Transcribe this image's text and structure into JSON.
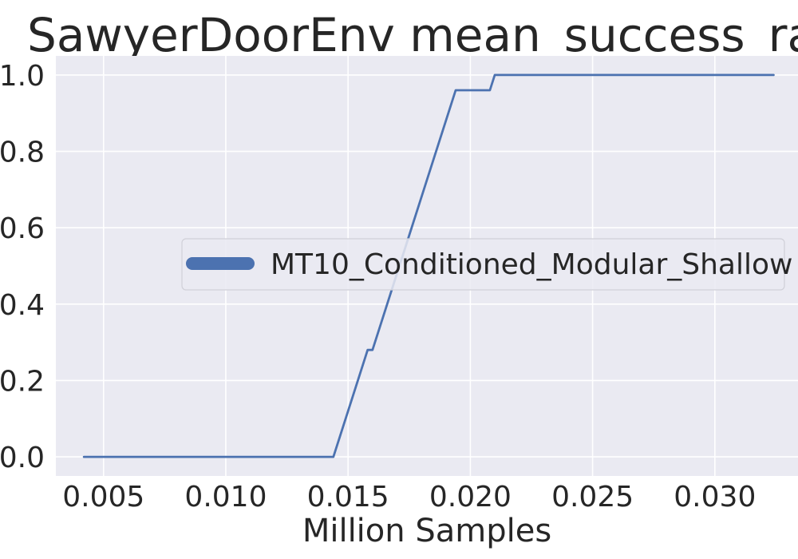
{
  "chart_data": {
    "type": "line",
    "title": "SawyerDoorEnv mean_success_rate",
    "xlabel": "Million Samples",
    "ylabel": "",
    "xlim": [
      0.00305,
      0.0334
    ],
    "ylim": [
      -0.05,
      1.05
    ],
    "xticks": [
      0.005,
      0.01,
      0.015,
      0.02,
      0.025,
      0.03
    ],
    "xtick_labels": [
      "0.005",
      "0.010",
      "0.015",
      "0.020",
      "0.025",
      "0.030"
    ],
    "yticks": [
      0.0,
      0.2,
      0.4,
      0.6,
      0.8,
      1.0
    ],
    "ytick_labels": [
      "0.0",
      "0.2",
      "0.4",
      "0.6",
      "0.8",
      "1.0"
    ],
    "grid": true,
    "legend_position": "center-right",
    "colors": {
      "background": "#EAEAF2",
      "grid": "#FFFFFF",
      "series": "#4C72B0"
    },
    "series": [
      {
        "name": "MT10_Conditioned_Modular_Shallow",
        "color": "#4C72B0",
        "x": [
          0.0042,
          0.0144,
          0.0158,
          0.016,
          0.0194,
          0.0202,
          0.0208,
          0.021,
          0.0324
        ],
        "y": [
          0.0,
          0.0,
          0.28,
          0.28,
          0.96,
          0.96,
          0.96,
          1.0,
          1.0
        ]
      }
    ]
  }
}
